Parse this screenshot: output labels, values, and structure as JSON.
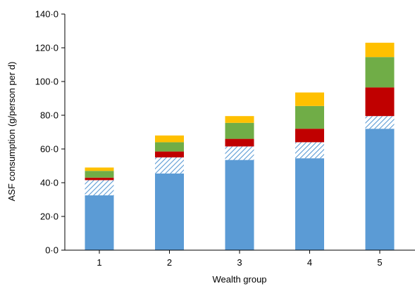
{
  "chart_data": {
    "type": "bar",
    "stacked": true,
    "categories": [
      "1",
      "2",
      "3",
      "4",
      "5"
    ],
    "xlabel": "Wealth group",
    "ylabel": "ASF consumption (g/person per d)",
    "ylim": [
      0,
      140
    ],
    "yticks": [
      "0·0",
      "20·0",
      "40·0",
      "60·0",
      "80·0",
      "100·0",
      "120·0",
      "140·0"
    ],
    "yticks_values": [
      0,
      20,
      40,
      60,
      80,
      100,
      120,
      140
    ],
    "grid": false,
    "series": [
      {
        "color": "#5b9bd5",
        "pattern": "solid",
        "values": [
          32.5,
          45.5,
          53.5,
          54.5,
          72.0
        ]
      },
      {
        "color": "#5b9bd5",
        "pattern": "diagonal-hatch",
        "values": [
          9.0,
          9.5,
          8.0,
          9.5,
          7.5
        ]
      },
      {
        "color": "#c00000",
        "pattern": "solid",
        "values": [
          1.5,
          3.5,
          4.5,
          8.0,
          17.0
        ]
      },
      {
        "color": "#70ad47",
        "pattern": "solid",
        "values": [
          4.0,
          5.5,
          9.5,
          13.5,
          18.0
        ]
      },
      {
        "color": "#ffc000",
        "pattern": "solid",
        "values": [
          2.0,
          4.0,
          4.0,
          8.0,
          8.5
        ]
      }
    ]
  }
}
